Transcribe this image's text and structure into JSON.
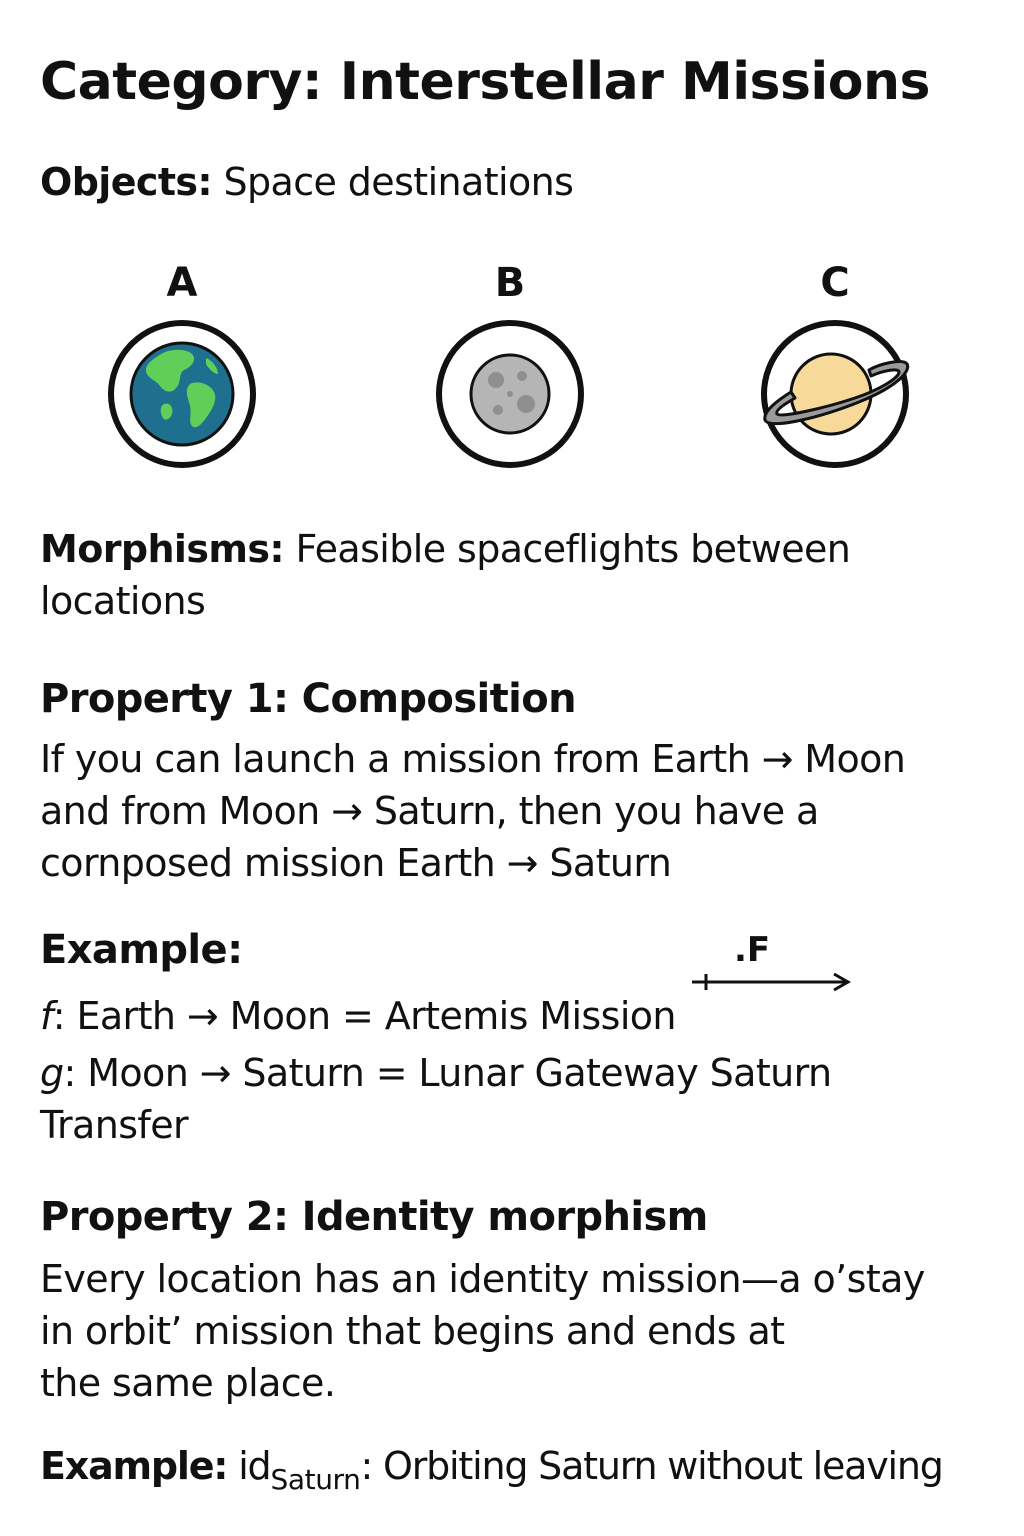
{
  "title": "Category: Interstellar Missions",
  "objects": {
    "label": "Objects:",
    "text": " Space destinations"
  },
  "destinations": [
    {
      "letter": "A",
      "icon": "earth-icon"
    },
    {
      "letter": "B",
      "icon": "moon-icon"
    },
    {
      "letter": "C",
      "icon": "saturn-icon"
    }
  ],
  "morphisms": {
    "label": "Morphisms:",
    "line1": " Feasible spaceflights between",
    "line2": "locations"
  },
  "property1": {
    "heading": "Property 1: Composition",
    "lines": [
      "If you can launch a mission from Earth → Moon",
      "and from Moon → Saturn, then you have a",
      "cornposed mission Earth → Saturn"
    ]
  },
  "example1": {
    "label": "Example:",
    "arrow_label": ".F",
    "f_symbol": "f",
    "f_text": ": Earth → Moon = Artemis Mission",
    "g_symbol": "g",
    "g_text": ": Moon → Saturn = Lunar Gateway Saturn",
    "g_text2": "Transfer"
  },
  "property2": {
    "heading": "Property 2: Identity morphism",
    "lines": [
      "Every location has an identity mission—a o’stay",
      "in orbit’  mission that begins and ends at",
      "the same place."
    ]
  },
  "example2": {
    "label": "Example:",
    "id_text": " id",
    "subscript": "Saturn",
    "rest": ": Orbiting Saturn without leaving"
  },
  "colors": {
    "earth_ocean": "#1f6f8f",
    "earth_land": "#5fcf5a",
    "moon": "#b5b5b5",
    "saturn": "#f7d99a",
    "ring": "#9a9a9a",
    "ink": "#111111"
  }
}
